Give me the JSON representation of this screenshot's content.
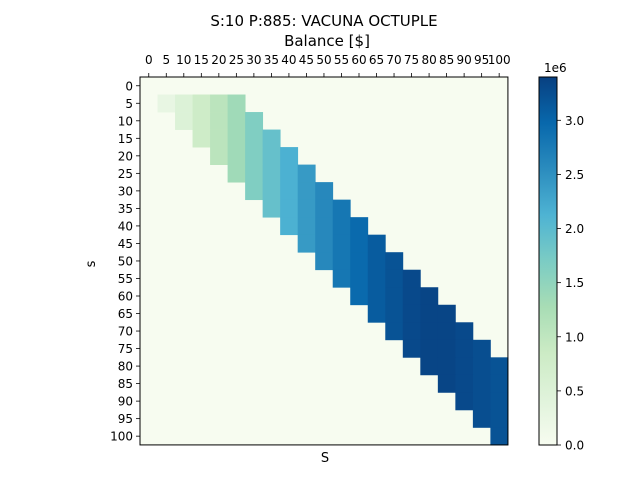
{
  "chart_data": {
    "type": "heatmap",
    "title": "S:10 P:885: VACUNA OCTUPLE",
    "subtitle": "Balance [$]",
    "xlabel": "S",
    "ylabel": "s",
    "x_ticks": [
      "0",
      "5",
      "10",
      "15",
      "20",
      "25",
      "30",
      "35",
      "40",
      "45",
      "50",
      "55",
      "60",
      "65",
      "70",
      "75",
      "80",
      "85",
      "90",
      "95",
      "100"
    ],
    "y_ticks": [
      "0",
      "5",
      "10",
      "15",
      "20",
      "25",
      "30",
      "35",
      "40",
      "45",
      "50",
      "55",
      "60",
      "65",
      "70",
      "75",
      "80",
      "85",
      "90",
      "95",
      "100"
    ],
    "x_tick_position": "top",
    "colormap": "GnBu",
    "colorbar": {
      "min": 0,
      "max": 3400000,
      "ticks": [
        0,
        500000,
        1000000,
        1500000,
        2000000,
        2500000,
        3000000
      ],
      "tick_labels": [
        "0.0",
        "0.5",
        "1.0",
        "1.5",
        "2.0",
        "2.5",
        "3.0"
      ],
      "offset_label": "1e6"
    },
    "rows": [
      {
        "s": 5,
        "S_start": 5,
        "values": [
          270000,
          500000,
          800000,
          1050000,
          1350000
        ]
      },
      {
        "s": 10,
        "S_start": 10,
        "values": [
          500000,
          800000,
          1050000,
          1350000,
          1650000
        ]
      },
      {
        "s": 15,
        "S_start": 15,
        "values": [
          800000,
          1050000,
          1350000,
          1650000,
          1900000
        ]
      },
      {
        "s": 20,
        "S_start": 20,
        "values": [
          1050000,
          1350000,
          1650000,
          1900000,
          2150000
        ]
      },
      {
        "s": 25,
        "S_start": 25,
        "values": [
          1350000,
          1650000,
          1900000,
          2150000,
          2400000
        ]
      },
      {
        "s": 30,
        "S_start": 30,
        "values": [
          1650000,
          1900000,
          2150000,
          2400000,
          2600000
        ]
      },
      {
        "s": 35,
        "S_start": 35,
        "values": [
          1900000,
          2150000,
          2400000,
          2600000,
          2800000
        ]
      },
      {
        "s": 40,
        "S_start": 40,
        "values": [
          2150000,
          2400000,
          2600000,
          2800000,
          2950000
        ]
      },
      {
        "s": 45,
        "S_start": 45,
        "values": [
          2400000,
          2600000,
          2800000,
          2950000,
          3100000
        ]
      },
      {
        "s": 50,
        "S_start": 50,
        "values": [
          2600000,
          2800000,
          2950000,
          3100000,
          3200000
        ]
      },
      {
        "s": 55,
        "S_start": 55,
        "values": [
          2800000,
          2950000,
          3100000,
          3200000,
          3300000
        ]
      },
      {
        "s": 60,
        "S_start": 60,
        "values": [
          2950000,
          3100000,
          3200000,
          3300000,
          3350000
        ]
      },
      {
        "s": 65,
        "S_start": 65,
        "values": [
          3100000,
          3200000,
          3300000,
          3350000,
          3350000
        ]
      },
      {
        "s": 70,
        "S_start": 70,
        "values": [
          3200000,
          3300000,
          3350000,
          3350000,
          3300000
        ]
      },
      {
        "s": 75,
        "S_start": 75,
        "values": [
          3300000,
          3350000,
          3350000,
          3300000,
          3250000
        ]
      },
      {
        "s": 80,
        "S_start": 80,
        "values": [
          3350000,
          3350000,
          3300000,
          3250000,
          3200000
        ]
      },
      {
        "s": 85,
        "S_start": 85,
        "values": [
          3350000,
          3300000,
          3250000,
          3200000
        ]
      },
      {
        "s": 90,
        "S_start": 90,
        "values": [
          3300000,
          3250000,
          3200000
        ]
      },
      {
        "s": 95,
        "S_start": 95,
        "values": [
          3250000,
          3200000
        ]
      },
      {
        "s": 100,
        "S_start": 100,
        "values": [
          3200000
        ]
      }
    ]
  }
}
